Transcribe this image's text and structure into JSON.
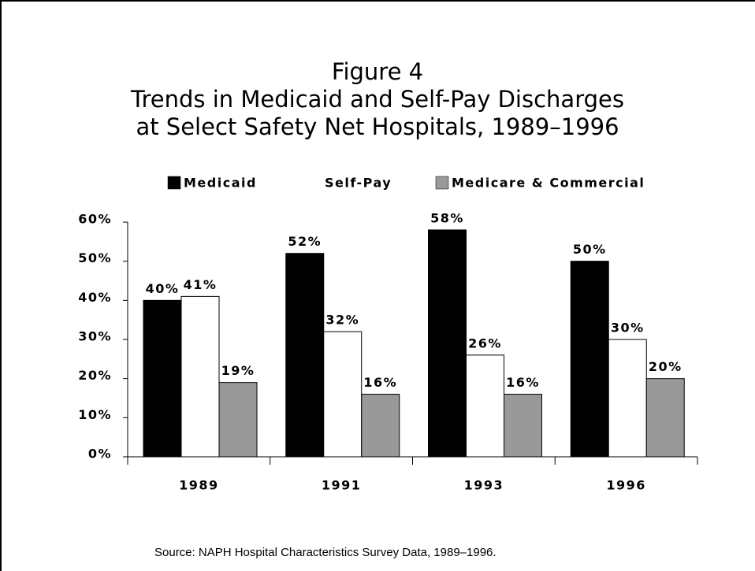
{
  "chart_data": {
    "type": "bar",
    "title": [
      "Figure 4",
      "Trends in Medicaid and Self-Pay Discharges",
      "at Select Safety Net Hospitals, 1989–1996"
    ],
    "categories": [
      "1989",
      "1991",
      "1993",
      "1996"
    ],
    "series": [
      {
        "name": "Medicaid",
        "color": "#000000",
        "values": [
          40,
          52,
          58,
          50
        ],
        "value_labels": [
          "40%",
          "52%",
          "58%",
          "50%"
        ]
      },
      {
        "name": "Self-Pay",
        "color": "#ffffff",
        "values": [
          41,
          32,
          26,
          30
        ],
        "value_labels": [
          "41%",
          "32%",
          "26%",
          "30%"
        ]
      },
      {
        "name": "Medicare & Commercial",
        "color": "#999999",
        "values": [
          19,
          16,
          16,
          20
        ],
        "value_labels": [
          "19%",
          "16%",
          "16%",
          "20%"
        ]
      }
    ],
    "ylim": [
      0,
      60
    ],
    "yticks": [
      {
        "value": 0,
        "label": "0%"
      },
      {
        "value": 10,
        "label": "10%"
      },
      {
        "value": 20,
        "label": "20%"
      },
      {
        "value": 30,
        "label": "30%"
      },
      {
        "value": 40,
        "label": "40%"
      },
      {
        "value": 50,
        "label": "50%"
      },
      {
        "value": 60,
        "label": "60%"
      }
    ],
    "legend": "top",
    "source": "Source: NAPH Hospital Characteristics Survey Data, 1989–1996."
  }
}
